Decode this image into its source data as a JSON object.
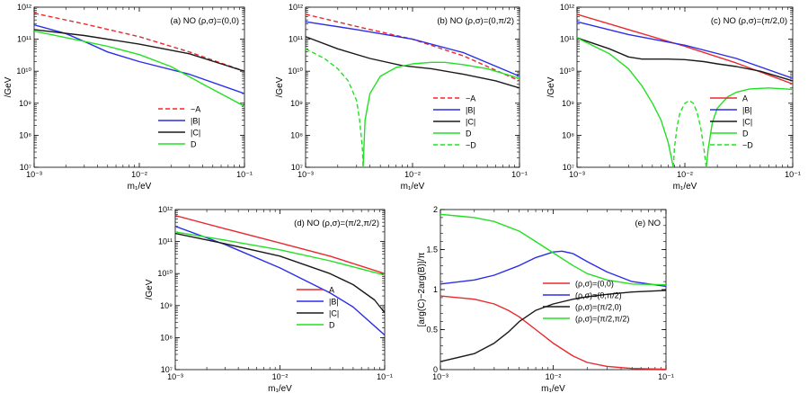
{
  "figure": {
    "colors": {
      "A": "#e8292e",
      "B": "#2b2de8",
      "C": "#1a1a1a",
      "D": "#22e022"
    }
  },
  "chart_data": [
    {
      "type": "line",
      "panel": "a",
      "title": "(a) NO  (ρ,σ)=(0,0)",
      "xlabel": "m₁/eV",
      "ylabel": "/GeV",
      "xscale": "log",
      "yscale": "log",
      "xlim": [
        0.001,
        0.1
      ],
      "ylim": [
        10000000.0,
        1000000000000.0
      ],
      "xticks": [
        "10⁻³",
        "10⁻²",
        "10⁻¹"
      ],
      "yticks": [
        "10⁷",
        "10⁸",
        "10⁹",
        "10¹⁰",
        "10¹¹",
        "10¹²"
      ],
      "legend_position": "bottom-right",
      "series": [
        {
          "name": "−A",
          "color": "#e8292e",
          "dash": true,
          "x": [
            0.001,
            0.003,
            0.01,
            0.03,
            0.1
          ],
          "y": [
            650000000000.0,
            300000000000.0,
            120000000000.0,
            40000000000.0,
            10000000000.0
          ]
        },
        {
          "name": "|B|",
          "color": "#2b2de8",
          "dash": false,
          "x": [
            0.001,
            0.002,
            0.003,
            0.005,
            0.01,
            0.03,
            0.1
          ],
          "y": [
            280000000000.0,
            150000000000.0,
            85000000000.0,
            40000000000.0,
            20000000000.0,
            8000000000.0,
            2000000000.0
          ]
        },
        {
          "name": "|C|",
          "color": "#1a1a1a",
          "dash": false,
          "x": [
            0.001,
            0.003,
            0.01,
            0.03,
            0.1
          ],
          "y": [
            200000000000.0,
            130000000000.0,
            70000000000.0,
            35000000000.0,
            10000000000.0
          ]
        },
        {
          "name": "D",
          "color": "#22e022",
          "dash": false,
          "x": [
            0.001,
            0.003,
            0.005,
            0.01,
            0.02,
            0.04,
            0.07,
            0.1
          ],
          "y": [
            180000000000.0,
            85000000000.0,
            60000000000.0,
            33000000000.0,
            14000000000.0,
            4000000000.0,
            1500000000.0,
            800000000.0
          ]
        }
      ]
    },
    {
      "type": "line",
      "panel": "b",
      "title": "(b) NO  (ρ,σ)=(0,π/2)",
      "xlabel": "m₁/eV",
      "ylabel": "/GeV",
      "xscale": "log",
      "yscale": "log",
      "xlim": [
        0.001,
        0.1
      ],
      "ylim": [
        10000000.0,
        1000000000000.0
      ],
      "xticks": [
        "10⁻³",
        "10⁻²",
        "10⁻¹"
      ],
      "yticks": [
        "10⁷",
        "10⁸",
        "10⁹",
        "10¹⁰",
        "10¹¹",
        "10¹²"
      ],
      "legend_position": "bottom-right",
      "series": [
        {
          "name": "−A",
          "color": "#e8292e",
          "dash": true,
          "x": [
            0.001,
            0.003,
            0.01,
            0.03,
            0.1
          ],
          "y": [
            600000000000.0,
            250000000000.0,
            100000000000.0,
            30000000000.0,
            5000000000.0
          ]
        },
        {
          "name": "|B|",
          "color": "#2b2de8",
          "dash": false,
          "x": [
            0.001,
            0.003,
            0.01,
            0.03,
            0.1
          ],
          "y": [
            350000000000.0,
            200000000000.0,
            100000000000.0,
            38000000000.0,
            7000000000.0
          ]
        },
        {
          "name": "|C|",
          "color": "#1a1a1a",
          "dash": false,
          "x": [
            0.001,
            0.002,
            0.004,
            0.008,
            0.015,
            0.03,
            0.06,
            0.1
          ],
          "y": [
            120000000000.0,
            50000000000.0,
            25000000000.0,
            15000000000.0,
            12000000000.0,
            8000000000.0,
            5000000000.0,
            3000000000.0
          ]
        },
        {
          "name": "D",
          "color": "#22e022",
          "dash": false,
          "x": [
            0.00345,
            0.0036,
            0.004,
            0.005,
            0.007,
            0.01,
            0.015,
            0.02,
            0.03,
            0.05,
            0.1
          ],
          "y": [
            10000000.0,
            300000000.0,
            2000000000.0,
            7000000000.0,
            13000000000.0,
            17000000000.0,
            19000000000.0,
            19000000000.0,
            16000000000.0,
            12000000000.0,
            6000000000.0
          ]
        },
        {
          "name": "−D",
          "color": "#22e022",
          "dash": true,
          "x": [
            0.001,
            0.0015,
            0.002,
            0.0025,
            0.003,
            0.0032,
            0.0034,
            0.00345
          ],
          "y": [
            50000000000.0,
            25000000000.0,
            12000000000.0,
            5000000000.0,
            1200000000.0,
            300000000.0,
            40000000.0,
            10000000.0
          ]
        }
      ]
    },
    {
      "type": "line",
      "panel": "c",
      "title": "(c) NO  (ρ,σ)=(π/2,0)",
      "xlabel": "m₁/eV",
      "ylabel": "/GeV",
      "xscale": "log",
      "yscale": "log",
      "xlim": [
        0.001,
        0.1
      ],
      "ylim": [
        10000000.0,
        1000000000000.0
      ],
      "xticks": [
        "10⁻³",
        "10⁻²",
        "10⁻¹"
      ],
      "yticks": [
        "10⁷",
        "10⁸",
        "10⁹",
        "10¹⁰",
        "10¹¹",
        "10¹²"
      ],
      "legend_position": "bottom-right",
      "series": [
        {
          "name": "A",
          "color": "#e8292e",
          "dash": false,
          "x": [
            0.001,
            0.003,
            0.01,
            0.03,
            0.1
          ],
          "y": [
            600000000000.0,
            200000000000.0,
            60000000000.0,
            18000000000.0,
            4000000000.0
          ]
        },
        {
          "name": "|B|",
          "color": "#2b2de8",
          "dash": false,
          "x": [
            0.001,
            0.003,
            0.01,
            0.03,
            0.1
          ],
          "y": [
            350000000000.0,
            140000000000.0,
            65000000000.0,
            25000000000.0,
            6000000000.0
          ]
        },
        {
          "name": "|C|",
          "color": "#1a1a1a",
          "dash": false,
          "x": [
            0.001,
            0.002,
            0.003,
            0.004,
            0.005,
            0.007,
            0.01,
            0.015,
            0.02,
            0.03,
            0.05,
            0.1
          ],
          "y": [
            110000000000.0,
            50000000000.0,
            28000000000.0,
            24000000000.0,
            24000000000.0,
            24000000000.0,
            23000000000.0,
            20000000000.0,
            17000000000.0,
            14000000000.0,
            10000000000.0,
            5000000000.0
          ]
        },
        {
          "name": "D",
          "color": "#22e022",
          "dash": false,
          "x": [
            0.001,
            0.002,
            0.003,
            0.004,
            0.005,
            0.006,
            0.007,
            0.0075,
            0.0078
          ],
          "y": [
            110000000000.0,
            35000000000.0,
            12000000000.0,
            3500000000.0,
            1000000000.0,
            300000000.0,
            60000000.0,
            20000000.0,
            10000000.0
          ]
        },
        {
          "name": "D",
          "color": "#22e022",
          "dash": false,
          "x": [
            0.0158,
            0.0165,
            0.018,
            0.02,
            0.025,
            0.03,
            0.04,
            0.06,
            0.1
          ],
          "y": [
            10000000.0,
            40000000.0,
            250000000.0,
            700000000.0,
            1600000000.0,
            2200000000.0,
            2800000000.0,
            3000000000.0,
            2700000000.0
          ]
        },
        {
          "name": "−D",
          "color": "#22e022",
          "dash": true,
          "x": [
            0.0078,
            0.008,
            0.0085,
            0.009,
            0.01,
            0.011,
            0.012,
            0.013,
            0.014,
            0.015,
            0.0158
          ],
          "y": [
            10000000.0,
            40000000.0,
            200000000.0,
            500000000.0,
            1000000000.0,
            1200000000.0,
            1000000000.0,
            500000000.0,
            180000000.0,
            40000000.0,
            10000000.0
          ]
        }
      ]
    },
    {
      "type": "line",
      "panel": "d",
      "title": "(d) NO  (ρ,σ)=(π/2,π/2)",
      "xlabel": "m₁/eV",
      "ylabel": "/GeV",
      "xscale": "log",
      "yscale": "log",
      "xlim": [
        0.001,
        0.1
      ],
      "ylim": [
        10000000.0,
        1000000000000.0
      ],
      "xticks": [
        "10⁻³",
        "10⁻²",
        "10⁻¹"
      ],
      "yticks": [
        "10⁷",
        "10⁸",
        "10⁹",
        "10¹⁰",
        "10¹¹",
        "10¹²"
      ],
      "legend_position": "bottom-right",
      "series": [
        {
          "name": "A",
          "color": "#e8292e",
          "dash": false,
          "x": [
            0.001,
            0.003,
            0.01,
            0.03,
            0.1
          ],
          "y": [
            650000000000.0,
            250000000000.0,
            90000000000.0,
            35000000000.0,
            10000000000.0
          ]
        },
        {
          "name": "|B|",
          "color": "#2b2de8",
          "dash": false,
          "x": [
            0.001,
            0.003,
            0.01,
            0.03,
            0.05,
            0.1
          ],
          "y": [
            300000000000.0,
            80000000000.0,
            15000000000.0,
            2500000000.0,
            900000000.0,
            120000000.0
          ]
        },
        {
          "name": "|C|",
          "color": "#1a1a1a",
          "dash": false,
          "x": [
            0.001,
            0.003,
            0.01,
            0.03,
            0.05,
            0.08,
            0.1
          ],
          "y": [
            180000000000.0,
            85000000000.0,
            35000000000.0,
            10000000000.0,
            4500000000.0,
            1500000000.0,
            600000000.0
          ]
        },
        {
          "name": "D",
          "color": "#22e022",
          "dash": false,
          "x": [
            0.001,
            0.003,
            0.01,
            0.03,
            0.1
          ],
          "y": [
            200000000000.0,
            110000000000.0,
            55000000000.0,
            25000000000.0,
            9000000000.0
          ]
        }
      ]
    },
    {
      "type": "line",
      "panel": "e",
      "title": "(e) NO",
      "xlabel": "m₁/eV",
      "ylabel": "[arg(C)−2arg(B)]/π",
      "xscale": "log",
      "yscale": "linear",
      "xlim": [
        0.001,
        0.1
      ],
      "ylim": [
        0,
        2
      ],
      "xticks": [
        "10⁻³",
        "10⁻²",
        "10⁻¹"
      ],
      "yticks": [
        "0",
        "0.5",
        "1",
        "1.5",
        "2"
      ],
      "legend_position": "bottom-right",
      "series": [
        {
          "name": "(ρ,σ)=(0,0)",
          "color": "#e8292e",
          "dash": false,
          "x": [
            0.001,
            0.002,
            0.003,
            0.004,
            0.005,
            0.007,
            0.01,
            0.015,
            0.02,
            0.03,
            0.05,
            0.1
          ],
          "y": [
            0.92,
            0.88,
            0.82,
            0.74,
            0.66,
            0.5,
            0.33,
            0.17,
            0.09,
            0.04,
            0.015,
            0.005
          ]
        },
        {
          "name": "(ρ,σ)=(0,π/2)",
          "color": "#2b2de8",
          "dash": false,
          "x": [
            0.001,
            0.002,
            0.003,
            0.005,
            0.007,
            0.01,
            0.012,
            0.015,
            0.02,
            0.03,
            0.05,
            0.1
          ],
          "y": [
            1.07,
            1.12,
            1.18,
            1.3,
            1.4,
            1.47,
            1.48,
            1.45,
            1.35,
            1.22,
            1.1,
            1.04
          ]
        },
        {
          "name": "(ρ,σ)=(π/2,0)",
          "color": "#1a1a1a",
          "dash": false,
          "x": [
            0.001,
            0.002,
            0.003,
            0.004,
            0.005,
            0.007,
            0.01,
            0.015,
            0.02,
            0.03,
            0.05,
            0.1
          ],
          "y": [
            0.1,
            0.2,
            0.33,
            0.47,
            0.6,
            0.74,
            0.82,
            0.88,
            0.91,
            0.94,
            0.97,
            0.99
          ]
        },
        {
          "name": "(ρ,σ)=(π/2,π/2)",
          "color": "#22e022",
          "dash": false,
          "x": [
            0.001,
            0.002,
            0.003,
            0.005,
            0.007,
            0.01,
            0.015,
            0.02,
            0.03,
            0.05,
            0.1
          ],
          "y": [
            1.94,
            1.9,
            1.85,
            1.73,
            1.6,
            1.46,
            1.3,
            1.2,
            1.12,
            1.07,
            1.06
          ]
        }
      ]
    }
  ]
}
